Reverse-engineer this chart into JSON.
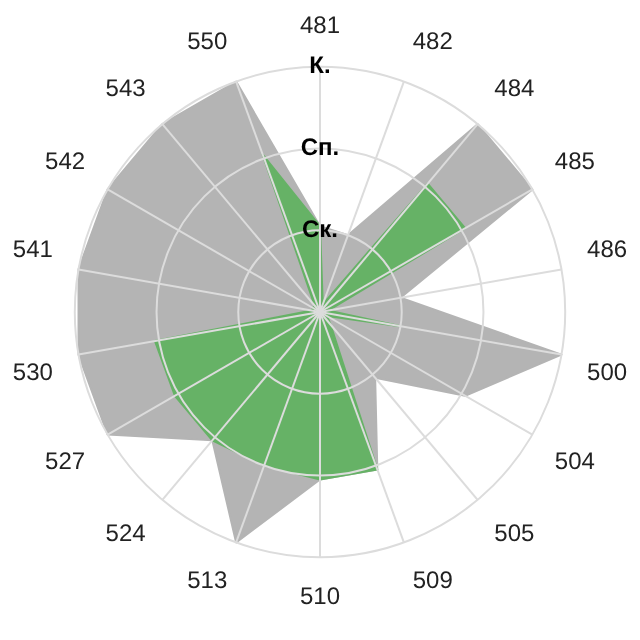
{
  "chart_data": {
    "type": "radar",
    "categories": [
      "481",
      "482",
      "484",
      "485",
      "486",
      "500",
      "504",
      "505",
      "509",
      "510",
      "513",
      "524",
      "527",
      "530",
      "541",
      "542",
      "543",
      "550"
    ],
    "series": [
      {
        "color": "#b4b4b4",
        "values": [
          1.05,
          1.0,
          3.0,
          3.0,
          1.0,
          3.0,
          2.05,
          1.05,
          2.05,
          2.05,
          3.0,
          2.05,
          3.0,
          3.0,
          3.0,
          3.0,
          3.0,
          3.0
        ]
      },
      {
        "color": "#66b266",
        "values": [
          1.05,
          0.1,
          2.05,
          2.05,
          0.1,
          1.0,
          0.1,
          0.2,
          2.05,
          2.05,
          2.0,
          2.05,
          2.05,
          2.05,
          0.1,
          0.1,
          0.1,
          2.05
        ]
      }
    ],
    "ylim": [
      0,
      3
    ],
    "yticks": [
      {
        "value": 1,
        "label": "Ск."
      },
      {
        "value": 2,
        "label": "Сп."
      },
      {
        "value": 3,
        "label": "К."
      }
    ],
    "grid": true,
    "legend": false,
    "marker": "none"
  }
}
